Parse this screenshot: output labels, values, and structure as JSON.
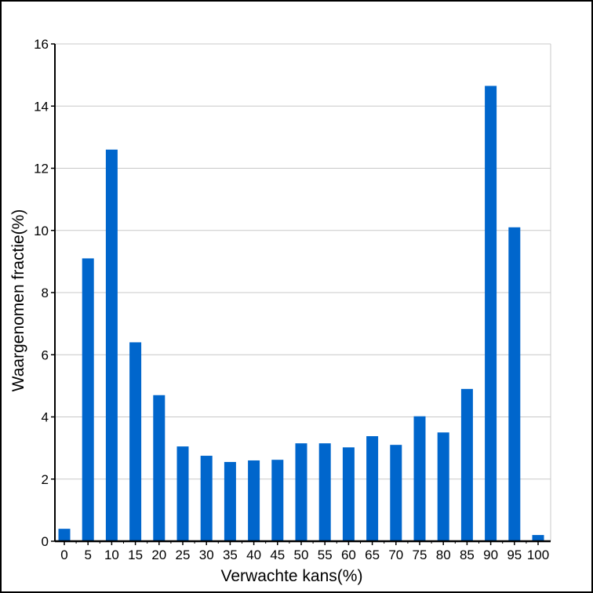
{
  "chart_data": {
    "type": "bar",
    "title": "",
    "xlabel": "Verwachte kans(%)",
    "ylabel": "Waargenomen fractie(%)",
    "categories": [
      "0",
      "5",
      "10",
      "15",
      "20",
      "25",
      "30",
      "35",
      "40",
      "45",
      "50",
      "55",
      "60",
      "65",
      "70",
      "75",
      "80",
      "85",
      "90",
      "95",
      "100"
    ],
    "values": [
      0.4,
      9.1,
      12.6,
      6.4,
      4.7,
      3.05,
      2.75,
      2.55,
      2.6,
      2.62,
      3.15,
      3.15,
      3.02,
      3.38,
      3.1,
      4.02,
      3.5,
      4.9,
      14.65,
      10.1,
      0.2
    ],
    "ylim": [
      0,
      16
    ],
    "yticks": [
      0,
      2,
      4,
      6,
      8,
      10,
      12,
      14,
      16
    ],
    "grid": "horizontal",
    "legend": "none",
    "bar_color": "#0066cc",
    "grid_color": "#c8c8c8"
  }
}
